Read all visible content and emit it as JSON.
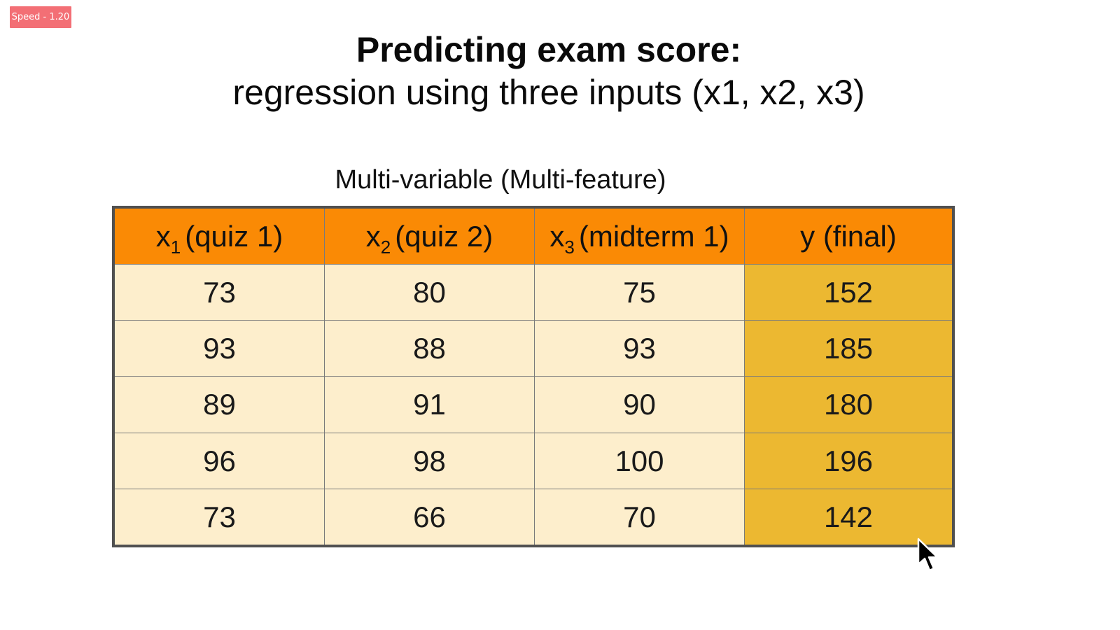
{
  "badge": {
    "speed_label": "Speed - 1.20"
  },
  "slide": {
    "title": "Predicting exam score:",
    "subtitle": "regression using three inputs (x1, x2, x3)",
    "caption": "Multi-variable (Multi-feature)"
  },
  "table": {
    "headers": [
      {
        "var": "x",
        "sub": "1",
        "label": "(quiz 1)"
      },
      {
        "var": "x",
        "sub": "2",
        "label": "(quiz 2)"
      },
      {
        "var": "x",
        "sub": "3",
        "label": "(midterm 1)"
      },
      {
        "var": "y",
        "sub": "",
        "label": "(final)"
      }
    ],
    "rows": [
      [
        "73",
        "80",
        "75",
        "152"
      ],
      [
        "93",
        "88",
        "93",
        "185"
      ],
      [
        "89",
        "91",
        "90",
        "180"
      ],
      [
        "96",
        "98",
        "100",
        "196"
      ],
      [
        "73",
        "66",
        "70",
        "142"
      ]
    ]
  },
  "colors": {
    "header": "#fa8a05",
    "input_cells": "#fdeecc",
    "target_cells": "#ecb831",
    "badge": "#f36f75"
  },
  "icons": {
    "cursor": "mouse-pointer-icon"
  }
}
